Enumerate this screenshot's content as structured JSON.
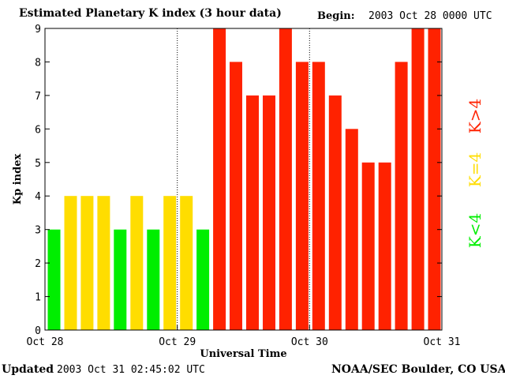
{
  "header": {
    "title": "Estimated Planetary K index (3 hour data)",
    "begin_label": "Begin:",
    "begin_value": "2003 Oct 28 0000 UTC"
  },
  "footer": {
    "updated_label": "Updated",
    "updated_value": "2003 Oct 31 02:45:02 UTC",
    "source": "NOAA/SEC Boulder, CO USA"
  },
  "chart_data": {
    "type": "bar",
    "title": "Estimated Planetary K index (3 hour data)",
    "xlabel": "Universal Time",
    "ylabel": "Kp index",
    "ylim": [
      0,
      9
    ],
    "yticks": [
      "0",
      "1",
      "2",
      "3",
      "4",
      "5",
      "6",
      "7",
      "8",
      "9"
    ],
    "xticks": [
      "Oct 28",
      "Oct 29",
      "Oct 30",
      "Oct 31"
    ],
    "grid": false,
    "day_dividers": [
      "Oct 29",
      "Oct 30"
    ],
    "values": [
      3,
      4,
      4,
      4,
      3,
      4,
      3,
      4,
      4,
      3,
      9,
      8,
      7,
      7,
      9,
      8,
      8,
      7,
      6,
      5,
      5,
      8,
      9,
      9
    ],
    "colors": {
      "low": "#00ee00",
      "mid": "#ffdd00",
      "high": "#ff2200"
    },
    "legend": [
      {
        "label": "K<4",
        "color_key": "low"
      },
      {
        "label": "K=4",
        "color_key": "mid"
      },
      {
        "label": "K>4",
        "color_key": "high"
      }
    ],
    "legend_position": "right"
  }
}
